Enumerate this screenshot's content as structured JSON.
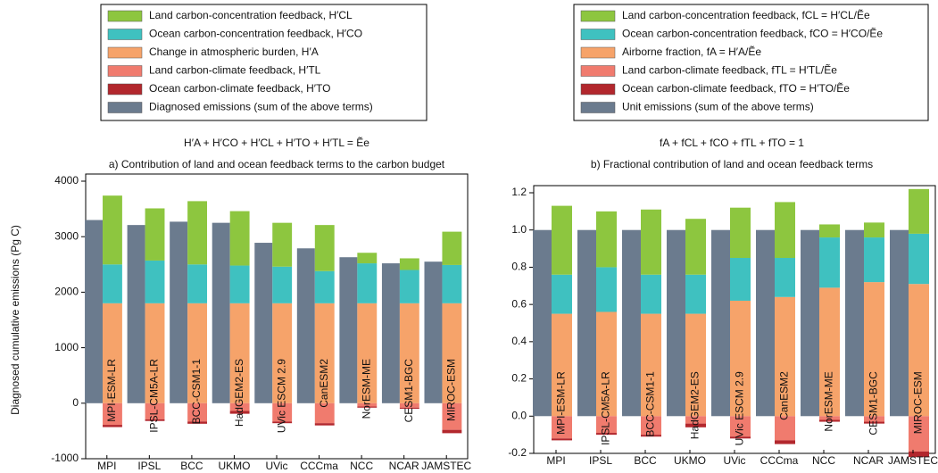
{
  "chart_data": [
    {
      "type": "bar",
      "title": "a) Contribution of land and ocean feedback terms to the carbon budget",
      "equation": "H′A + H′CO + H′CL + H′TO + H′TL = Ẽe",
      "y_label": "Diagnosed cumulative emissions (Pg C)",
      "categories": [
        "MPI",
        "IPSL",
        "BCC",
        "UKMO",
        "UVic",
        "CCCma",
        "NCC",
        "NCAR",
        "JAMSTEC"
      ],
      "bar_labels": [
        "MPI-ESM-LR",
        "IPSL-CM5A-LR",
        "BCC-CSM1-1",
        "HadGEM2-ES",
        "UVic ESCM 2.9",
        "CanESM2",
        "NorESM-ME",
        "CESM1-BGC",
        "MIROC-ESM"
      ],
      "series": [
        {
          "name": "Land carbon-concentration feedback, H′CL",
          "color": "#8dc63f",
          "values": [
            1240,
            940,
            1140,
            980,
            790,
            830,
            190,
            210,
            600
          ]
        },
        {
          "name": "Ocean carbon-concentration feedback, H′CO",
          "color": "#3fc1c0",
          "values": [
            700,
            770,
            700,
            680,
            660,
            580,
            720,
            600,
            690
          ]
        },
        {
          "name": "Change in atmospheric burden, H′A",
          "color": "#f6a36a",
          "values": [
            1800,
            1800,
            1800,
            1800,
            1800,
            1800,
            1800,
            1800,
            1800
          ]
        },
        {
          "name": "Land carbon-climate feedback, H′TL",
          "color": "#f07b6e",
          "values": [
            -390,
            -290,
            -330,
            -140,
            -330,
            -360,
            -60,
            -80,
            -480
          ]
        },
        {
          "name": "Ocean carbon-climate feedback, H′TO",
          "color": "#b2272d",
          "values": [
            -40,
            -30,
            -40,
            -50,
            -30,
            -40,
            -20,
            -20,
            -60
          ]
        },
        {
          "name": "Diagnosed emissions (sum of the above terms)",
          "color": "#6b7b8e",
          "values": [
            3300,
            3210,
            3270,
            3250,
            2890,
            2790,
            2630,
            2520,
            2550
          ]
        }
      ],
      "ylim": [
        -1000,
        4000
      ],
      "yticks": [
        -1000,
        0,
        1000,
        2000,
        3000,
        4000
      ]
    },
    {
      "type": "bar",
      "title": "b) Fractional contribution of land and ocean feedback terms",
      "equation": "fA + fCL + fCO + fTL + fTO = 1",
      "categories": [
        "MPI",
        "IPSL",
        "BCC",
        "UKMO",
        "UVic",
        "CCCma",
        "NCC",
        "NCAR",
        "JAMSTEC"
      ],
      "bar_labels": [
        "MPI-ESM-LR",
        "IPSL-CM5A-LR",
        "BCC-CSM1-1",
        "HadGEM2-ES",
        "UVic ESCM 2.9",
        "CanESM2",
        "NorESM-ME",
        "CESM1-BGC",
        "MIROC-ESM"
      ],
      "series": [
        {
          "name": "Land carbon-concentration feedback, fCL = H′CL/Ẽe",
          "color": "#8dc63f",
          "values": [
            0.37,
            0.3,
            0.35,
            0.3,
            0.27,
            0.3,
            0.07,
            0.08,
            0.24
          ]
        },
        {
          "name": "Ocean carbon-concentration feedback, fCO = H′CO/Ẽe",
          "color": "#3fc1c0",
          "values": [
            0.21,
            0.24,
            0.21,
            0.21,
            0.23,
            0.21,
            0.27,
            0.24,
            0.27
          ]
        },
        {
          "name": "Airborne fraction, fA = H′A/Ẽe",
          "color": "#f6a36a",
          "values": [
            0.55,
            0.56,
            0.55,
            0.55,
            0.62,
            0.64,
            0.69,
            0.72,
            0.71
          ]
        },
        {
          "name": "Land carbon-climate feedback, fTL = H′TL/Ẽe",
          "color": "#f07b6e",
          "values": [
            -0.12,
            -0.09,
            -0.1,
            -0.04,
            -0.11,
            -0.13,
            -0.02,
            -0.03,
            -0.19
          ]
        },
        {
          "name": "Ocean carbon-climate feedback, fTO = H′TO/Ẽe",
          "color": "#b2272d",
          "values": [
            -0.01,
            -0.01,
            -0.01,
            -0.02,
            -0.01,
            -0.02,
            -0.01,
            -0.01,
            -0.03
          ]
        },
        {
          "name": "Unit emissions (sum of the above terms)",
          "color": "#6b7b8e",
          "values": [
            1.0,
            1.0,
            1.0,
            1.0,
            1.0,
            1.0,
            1.0,
            1.0,
            1.0
          ]
        }
      ],
      "ylim": [
        -0.2,
        1.2
      ],
      "yticks": [
        {
          "value": -0.2,
          "label": "-0.2"
        },
        {
          "value": 0,
          "label": "0.0"
        },
        {
          "value": 0.2,
          "label": "0.2"
        },
        {
          "value": 0.4,
          "label": "0.4"
        },
        {
          "value": 0.6,
          "label": "0.6"
        },
        {
          "value": 0.8,
          "label": "0.8"
        },
        {
          "value": 1,
          "label": "1.0"
        },
        {
          "value": 1.2,
          "label": "1.2"
        }
      ]
    }
  ]
}
